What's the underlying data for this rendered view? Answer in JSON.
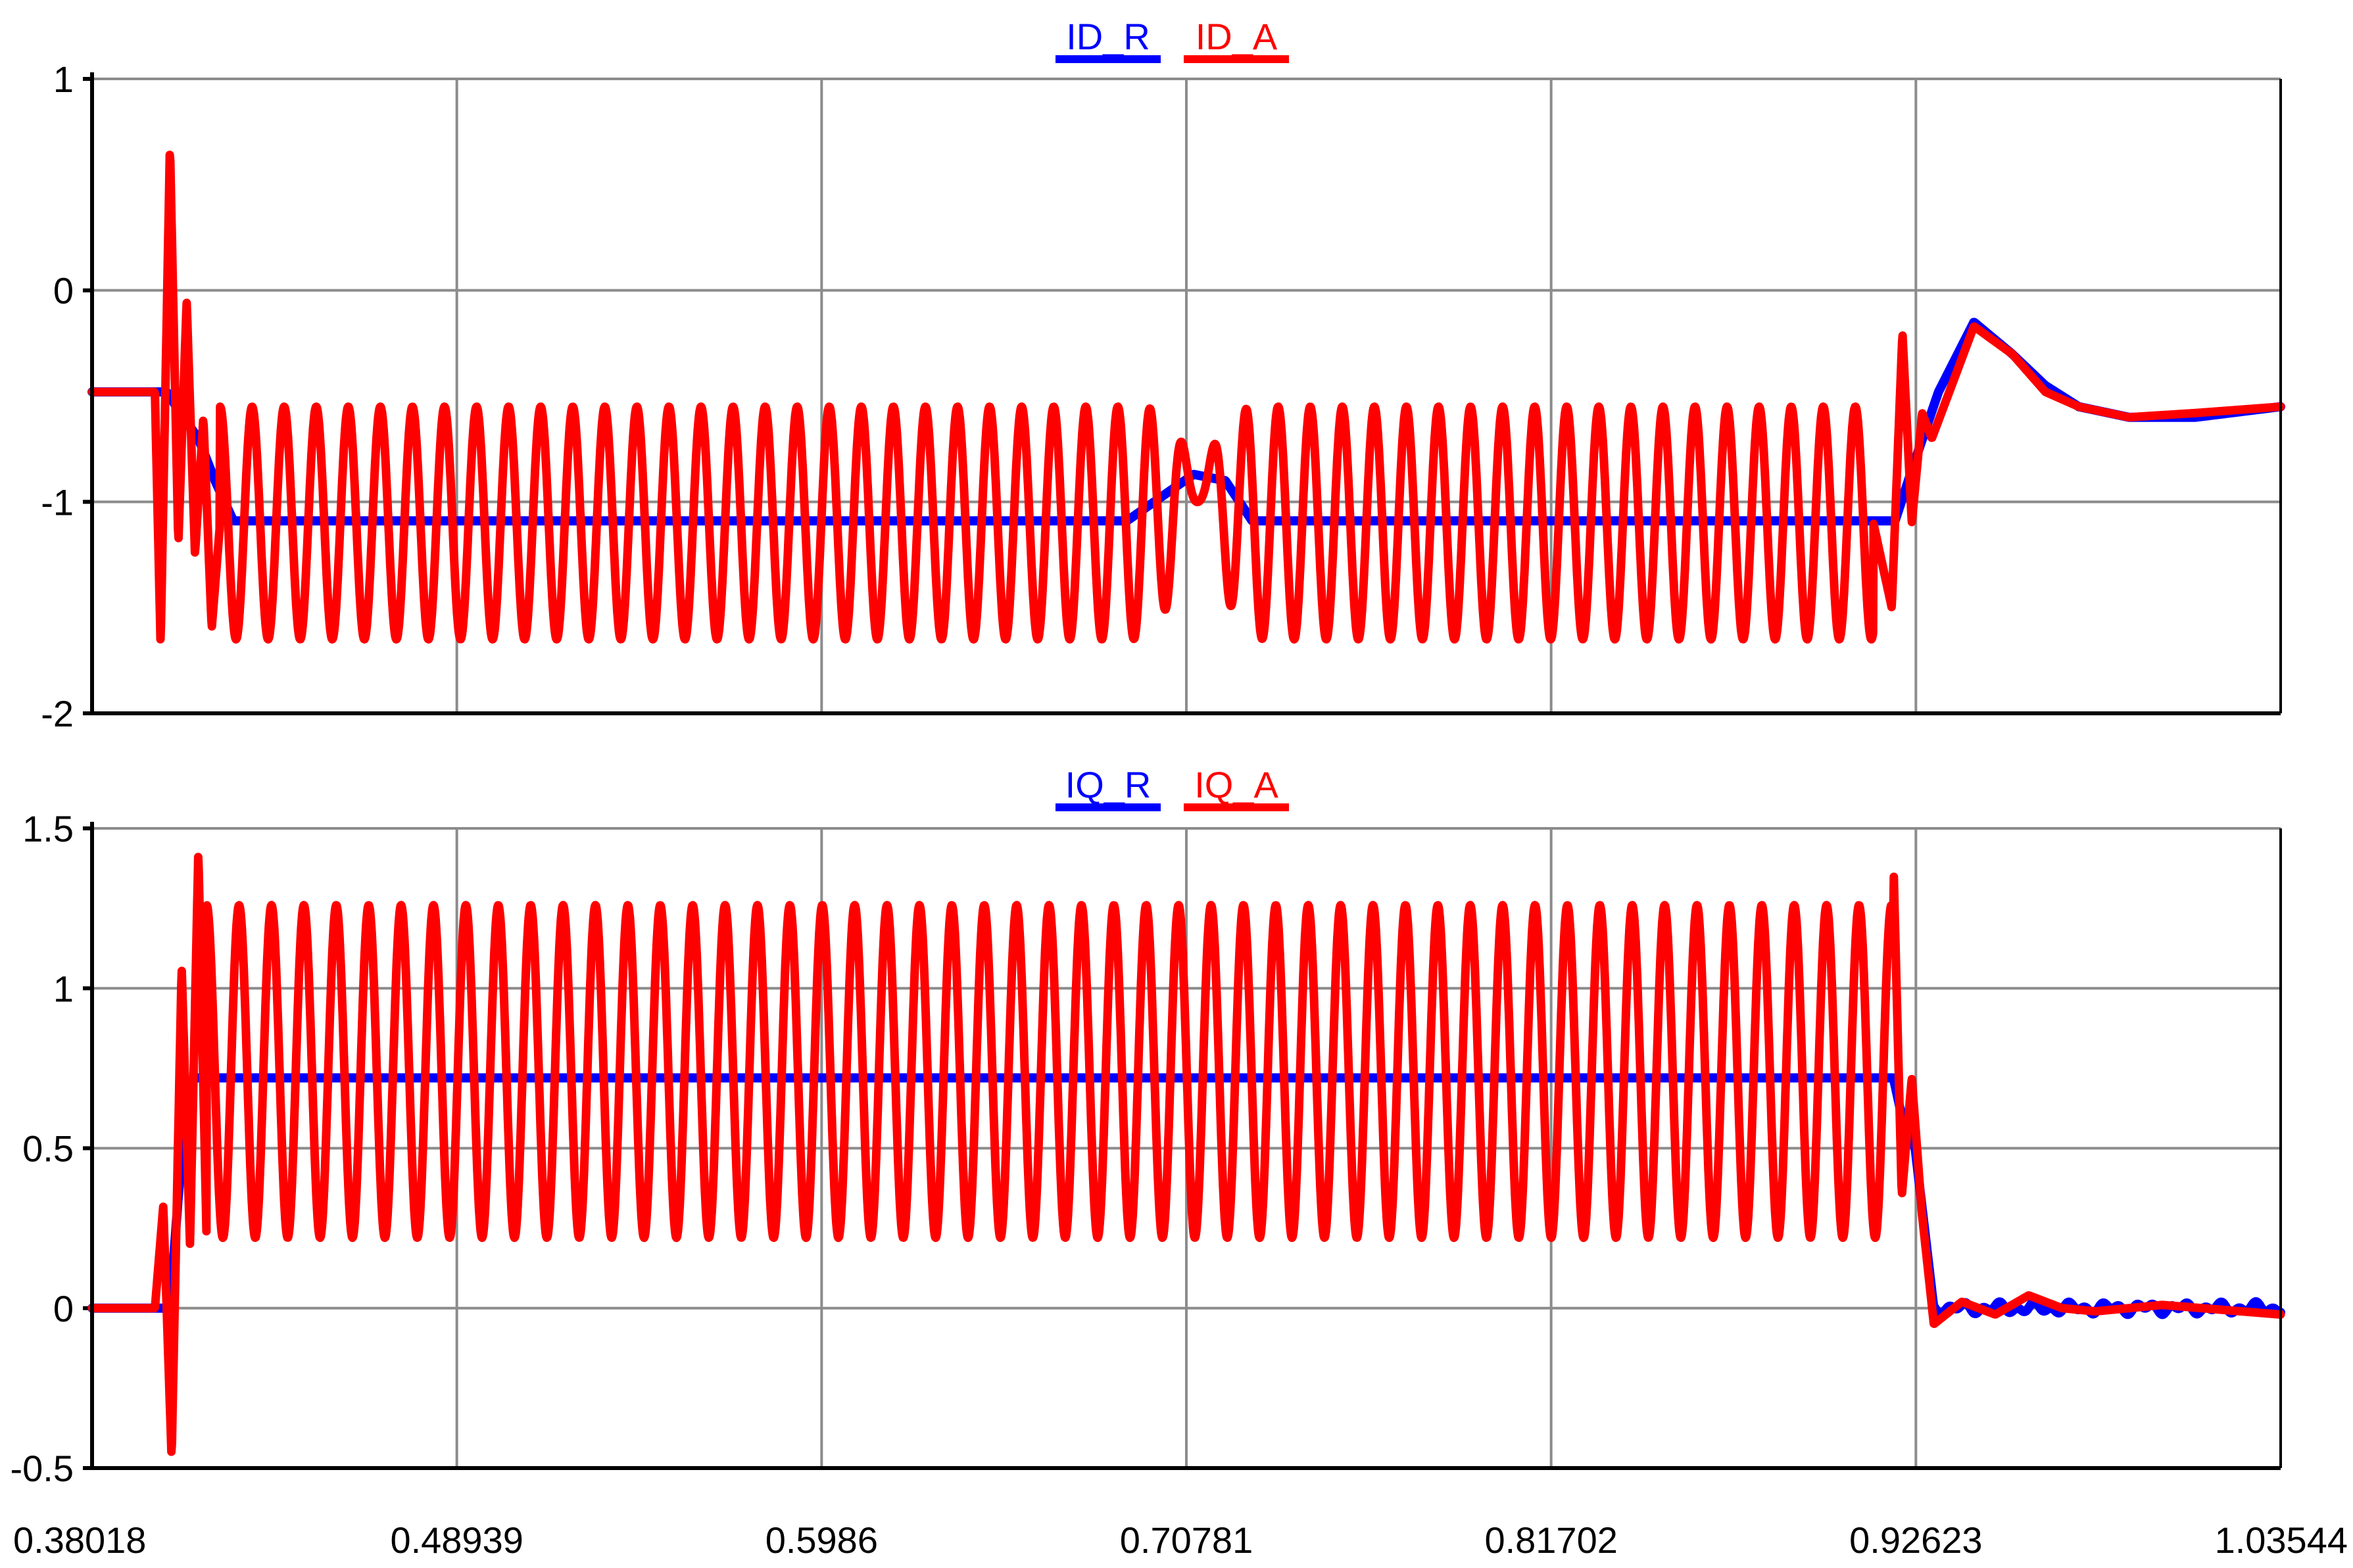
{
  "chart_data": [
    {
      "type": "line",
      "legend_position": "top-center",
      "grid": true,
      "xlim": [
        0.38018,
        1.03544
      ],
      "ylim": [
        -2,
        1
      ],
      "yticks": [
        "1",
        "0",
        "-1",
        "-2"
      ],
      "ytick_values": [
        1,
        0,
        -1,
        -2
      ],
      "xticks": [],
      "series": [
        {
          "name": "ID_R",
          "color": "#0000ff",
          "x": [
            0.38018,
            0.4025,
            0.4075,
            0.412,
            0.417,
            0.4225,
            0.69,
            0.7,
            0.71,
            0.7195,
            0.7275,
            0.92,
            0.925,
            0.933,
            0.9436,
            0.955,
            0.965,
            0.975,
            0.99,
            1.01,
            1.03544
          ],
          "y": [
            -0.48,
            -0.48,
            -0.6,
            -0.7,
            -0.9,
            -1.09,
            -1.09,
            -0.98,
            -0.87,
            -0.9,
            -1.09,
            -1.09,
            -0.85,
            -0.48,
            -0.15,
            -0.3,
            -0.45,
            -0.55,
            -0.6,
            -0.6,
            -0.55
          ]
        },
        {
          "name": "ID_A",
          "color": "#ff0000",
          "x": [
            0.38018,
            0.399,
            0.4007,
            0.4035,
            0.406,
            0.4085,
            0.411,
            0.4135,
            0.416,
            0.4185,
            0.6995,
            0.7115,
            0.7195,
            0.9135,
            0.919,
            0.9222,
            0.925,
            0.9281,
            0.931,
            0.9436,
            0.955,
            0.965,
            0.975,
            0.99,
            1.01,
            1.03544
          ],
          "y": [
            -0.48,
            -0.48,
            -1.68,
            0.69,
            -1.2,
            -0.05,
            -1.25,
            -0.6,
            -1.6,
            -1.1,
            -1.1,
            -1.1,
            -1.1,
            -1.1,
            -1.5,
            -0.2,
            -1.1,
            -0.58,
            -0.7,
            -0.17,
            -0.3,
            -0.48,
            -0.55,
            -0.6,
            -0.58,
            -0.55
          ],
          "oscillation": {
            "x_start": 0.4185,
            "x_end": 0.9135,
            "mid": -1.1,
            "amplitude": 0.55,
            "period": 0.0096,
            "disturbance_center": 0.7115,
            "disturbance_width": 0.008,
            "disturbance_peak": -0.3
          }
        }
      ]
    },
    {
      "type": "line",
      "legend_position": "top-center",
      "grid": true,
      "xlim": [
        0.38018,
        1.03544
      ],
      "ylim": [
        -0.5,
        1.5
      ],
      "yticks": [
        "1.5",
        "1",
        "0.5",
        "0",
        "-0.5"
      ],
      "ytick_values": [
        1.5,
        1,
        0.5,
        0,
        -0.5
      ],
      "xticks": [
        "0.38018",
        "0.48939",
        "0.5986",
        "0.70781",
        "0.81702",
        "0.92623",
        "1.03544"
      ],
      "xtick_values": [
        0.38018,
        0.48939,
        0.5986,
        0.70781,
        0.81702,
        0.92623,
        1.03544
      ],
      "series": [
        {
          "name": "IQ_R",
          "color": "#0000ff",
          "x": [
            0.38018,
            0.4035,
            0.406,
            0.409,
            0.411,
            0.9195,
            0.922,
            0.926,
            0.9316,
            1.03544
          ],
          "y": [
            0,
            0,
            0.35,
            0.7,
            0.72,
            0.72,
            0.6,
            0.5,
            0,
            0
          ],
          "noise": {
            "x_start": 0.9316,
            "amplitude": 0.02
          }
        },
        {
          "name": "IQ_A",
          "color": "#ff0000",
          "x": [
            0.38018,
            0.399,
            0.4015,
            0.404,
            0.407,
            0.4095,
            0.412,
            0.4145,
            0.9195,
            0.922,
            0.925,
            0.928,
            0.9316,
            0.94,
            0.95,
            0.96,
            0.97,
            0.98,
            1.0,
            1.03544
          ],
          "y": [
            0,
            0,
            0.32,
            -0.47,
            1.07,
            0.2,
            1.43,
            0.2,
            1.4,
            0.35,
            0.72,
            0.3,
            -0.05,
            0.02,
            -0.02,
            0.04,
            0,
            -0.01,
            0.01,
            -0.02
          ],
          "oscillation": {
            "x_start": 0.4145,
            "x_end": 0.9195,
            "mid": 0.74,
            "amplitude": 0.52,
            "period": 0.0097
          }
        }
      ]
    }
  ]
}
